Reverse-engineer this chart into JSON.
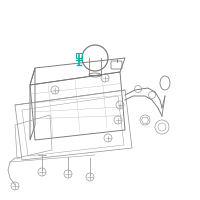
{
  "bg_color": "#ffffff",
  "line_color": "#999999",
  "line_color_dark": "#777777",
  "highlight_color": "#1aa8aa",
  "lw": 0.55
}
